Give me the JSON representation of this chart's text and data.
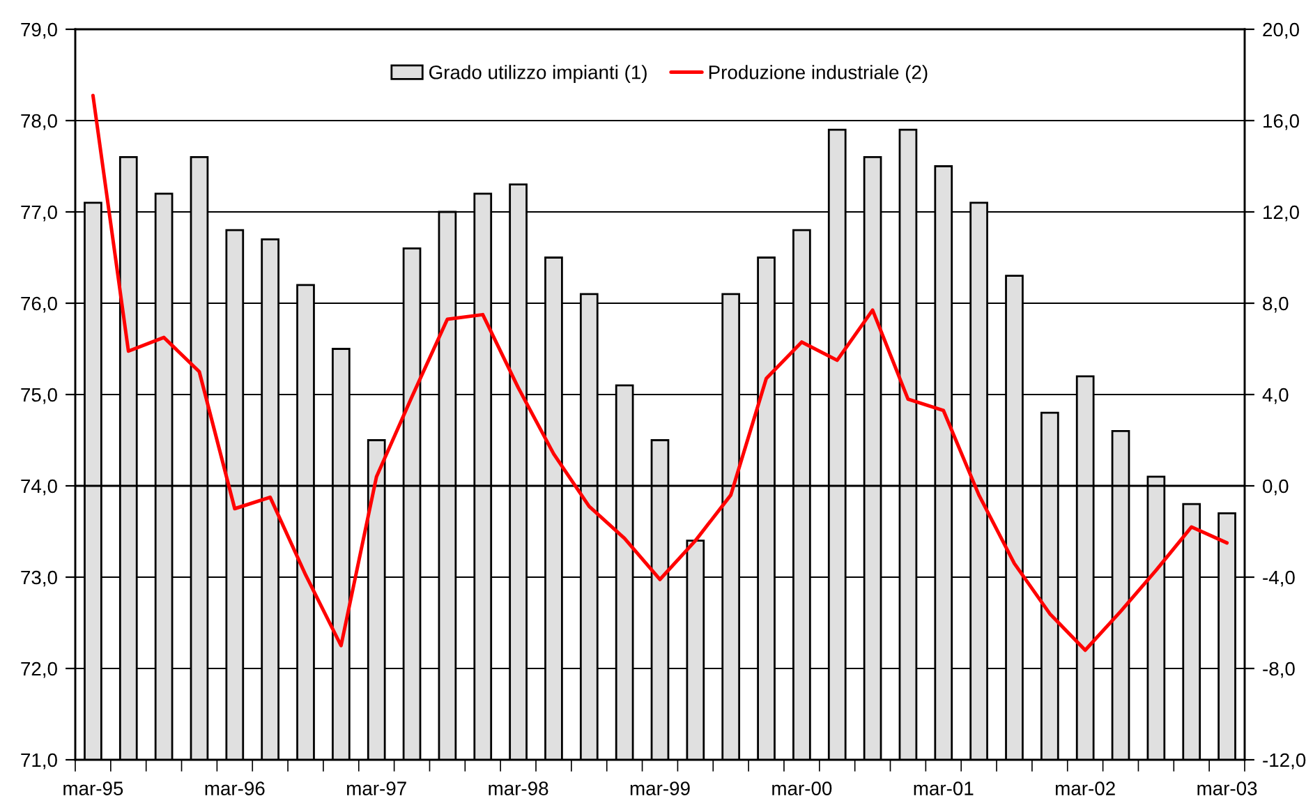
{
  "chart_data": {
    "type": "bar",
    "categories": [
      "mar-95",
      null,
      null,
      null,
      "mar-96",
      null,
      null,
      null,
      "mar-97",
      null,
      null,
      null,
      "mar-98",
      null,
      null,
      null,
      "mar-99",
      null,
      null,
      null,
      "mar-00",
      null,
      null,
      null,
      "mar-01",
      null,
      null,
      null,
      "mar-02",
      null,
      null,
      null,
      "mar-03"
    ],
    "series": [
      {
        "name": "Grado utilizzo impianti (1)",
        "color": "#e0e0e0",
        "values": [
          77.1,
          77.6,
          77.2,
          77.6,
          76.8,
          76.7,
          76.2,
          75.5,
          74.5,
          76.6,
          77.0,
          77.2,
          77.3,
          76.5,
          76.1,
          75.1,
          74.5,
          73.4,
          76.1,
          76.5,
          76.8,
          77.9,
          77.6,
          77.9,
          77.5,
          77.1,
          76.3,
          74.8,
          75.2,
          74.6,
          74.1,
          73.8,
          73.7
        ]
      },
      {
        "name": "Produzione industriale (2)",
        "type": "line",
        "axis": "y2",
        "color": "#ff0000",
        "values": [
          17.1,
          5.9,
          6.5,
          5.0,
          -1.0,
          -0.5,
          -3.9,
          -7.0,
          0.4,
          3.9,
          7.3,
          7.5,
          4.3,
          1.4,
          -0.9,
          -2.3,
          -4.1,
          -2.4,
          -0.4,
          4.7,
          6.3,
          5.5,
          7.7,
          3.8,
          3.3,
          -0.4,
          -3.4,
          -5.6,
          -7.2,
          -5.5,
          -3.7,
          -1.8,
          -2.5
        ]
      }
    ],
    "ylim": [
      71,
      79
    ],
    "yticks": [
      {
        "value": 71,
        "label": "71,0"
      },
      {
        "value": 72,
        "label": "72,0"
      },
      {
        "value": 73,
        "label": "73,0"
      },
      {
        "value": 74,
        "label": "74,0"
      },
      {
        "value": 75,
        "label": "75,0"
      },
      {
        "value": 76,
        "label": "76,0"
      },
      {
        "value": 77,
        "label": "77,0"
      },
      {
        "value": 78,
        "label": "78,0"
      },
      {
        "value": 79,
        "label": "79,0"
      }
    ],
    "y2lim": [
      -12,
      20
    ],
    "y2ticks": [
      {
        "value": -12,
        "label": "-12,0"
      },
      {
        "value": -8,
        "label": "-8,0"
      },
      {
        "value": -4,
        "label": "-4,0"
      },
      {
        "value": 0,
        "label": "0,0"
      },
      {
        "value": 4,
        "label": "4,0"
      },
      {
        "value": 8,
        "label": "8,0"
      },
      {
        "value": 12,
        "label": "12,0"
      },
      {
        "value": 16,
        "label": "16,0"
      },
      {
        "value": 20,
        "label": "20,0"
      }
    ],
    "ref_lines": [
      {
        "axis": "y2",
        "value": 0,
        "color": "#000000"
      }
    ],
    "grid": "y",
    "legend": "top"
  }
}
